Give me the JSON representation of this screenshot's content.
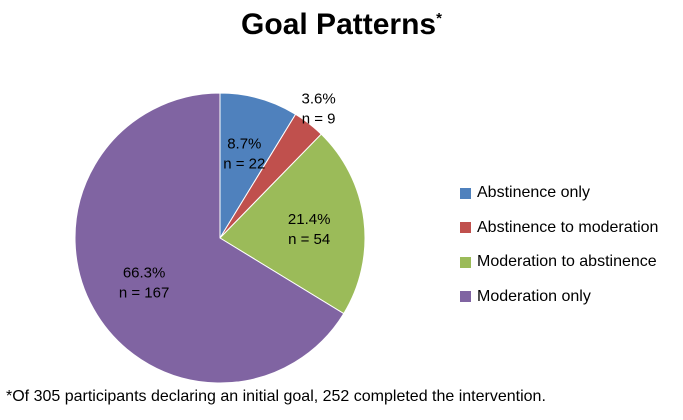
{
  "chart_data": {
    "type": "pie",
    "title": "Goal Patterns",
    "title_mark": "*",
    "categories": [
      "Abstinence only",
      "Abstinence to moderation",
      "Moderation to abstinence",
      "Moderation only"
    ],
    "values": [
      22,
      9,
      54,
      167
    ],
    "percent_labels": [
      "8.7%",
      "3.6%",
      "21.4%",
      "66.3%"
    ],
    "count_labels": [
      "n = 22",
      "n = 9",
      "n = 54",
      "n = 167"
    ],
    "colors": [
      "#4F81BD",
      "#C0504D",
      "#9BBB59",
      "#8064A2"
    ],
    "legend_position": "right",
    "footnote": "*Of 305 participants declaring an initial goal, 252 completed the intervention."
  }
}
